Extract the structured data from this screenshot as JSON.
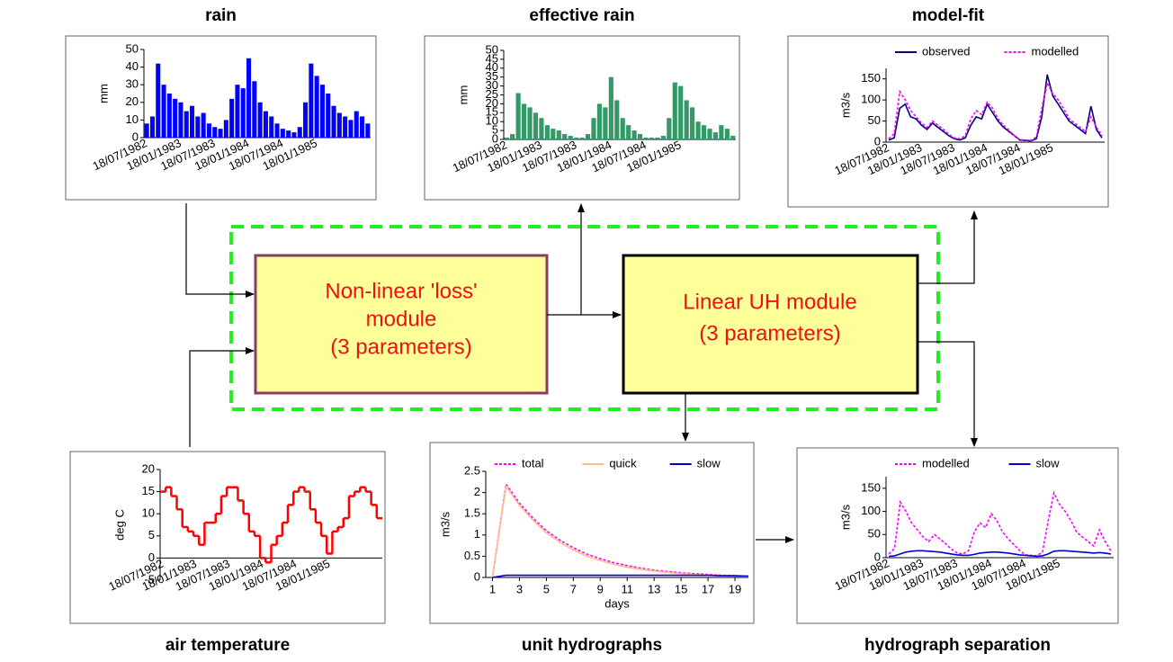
{
  "chart_data": [
    {
      "type": "bar",
      "title": "rain",
      "ylabel": "mm",
      "color": "#0000ff",
      "categories": [
        "18/07/1982",
        null,
        null,
        null,
        null,
        null,
        "18/01/1983",
        null,
        null,
        null,
        null,
        null,
        "18/07/1983",
        null,
        null,
        null,
        null,
        null,
        "18/01/1984",
        null,
        null,
        null,
        null,
        null,
        "18/07/1984",
        null,
        null,
        null,
        null,
        null,
        "18/01/1985",
        null,
        null,
        null,
        null,
        null,
        null,
        null,
        null,
        null
      ],
      "values": [
        8,
        12,
        42,
        30,
        25,
        22,
        20,
        15,
        18,
        12,
        14,
        8,
        6,
        5,
        10,
        22,
        30,
        28,
        45,
        32,
        20,
        15,
        12,
        8,
        5,
        4,
        3,
        6,
        20,
        42,
        35,
        30,
        25,
        18,
        14,
        12,
        10,
        15,
        12,
        8
      ],
      "ylim": [
        0,
        50
      ],
      "yticks": [
        0,
        10,
        20,
        30,
        40,
        50
      ]
    },
    {
      "type": "bar",
      "title": "effective rain",
      "ylabel": "mm",
      "color": "#339966",
      "categories": [
        "18/07/1982",
        null,
        null,
        null,
        null,
        null,
        "18/01/1983",
        null,
        null,
        null,
        null,
        null,
        "18/07/1983",
        null,
        null,
        null,
        null,
        null,
        "18/01/1984",
        null,
        null,
        null,
        null,
        null,
        "18/07/1984",
        null,
        null,
        null,
        null,
        null,
        "18/01/1985",
        null,
        null,
        null,
        null,
        null,
        null,
        null,
        null,
        null
      ],
      "values": [
        1,
        3,
        26,
        20,
        18,
        15,
        12,
        8,
        6,
        5,
        3,
        2,
        1,
        1,
        3,
        12,
        20,
        18,
        35,
        22,
        12,
        8,
        5,
        3,
        1,
        1,
        1,
        2,
        12,
        32,
        30,
        22,
        18,
        10,
        8,
        6,
        4,
        8,
        6,
        2
      ],
      "ylim": [
        0,
        50
      ],
      "yticks": [
        0,
        5,
        10,
        15,
        20,
        25,
        30,
        35,
        40,
        45,
        50
      ]
    },
    {
      "type": "line",
      "title": "model-fit",
      "ylabel": "m3/s",
      "legend": "top",
      "categories": [
        "18/07/1982",
        null,
        null,
        null,
        null,
        null,
        "18/01/1983",
        null,
        null,
        null,
        null,
        null,
        "18/07/1983",
        null,
        null,
        null,
        null,
        null,
        "18/01/1984",
        null,
        null,
        null,
        null,
        null,
        "18/07/1984",
        null,
        null,
        null,
        null,
        null,
        "18/01/1985",
        null,
        null,
        null,
        null,
        null,
        null,
        null,
        null,
        null
      ],
      "series": [
        {
          "name": "observed",
          "color": "#000080",
          "dash": false,
          "values": [
            5,
            10,
            80,
            90,
            60,
            55,
            40,
            30,
            45,
            35,
            25,
            15,
            8,
            5,
            10,
            40,
            60,
            55,
            90,
            70,
            50,
            35,
            25,
            15,
            5,
            4,
            3,
            8,
            60,
            160,
            110,
            90,
            70,
            50,
            40,
            30,
            20,
            85,
            30,
            10
          ]
        },
        {
          "name": "modelled",
          "color": "#ff00ff",
          "dash": true,
          "values": [
            8,
            20,
            120,
            100,
            75,
            60,
            45,
            35,
            50,
            40,
            30,
            18,
            10,
            8,
            15,
            55,
            75,
            65,
            95,
            80,
            55,
            40,
            28,
            15,
            6,
            5,
            4,
            12,
            80,
            140,
            115,
            100,
            80,
            55,
            45,
            35,
            25,
            60,
            35,
            15
          ]
        }
      ],
      "ylim": [
        0,
        175
      ],
      "yticks": [
        0,
        50,
        100,
        150
      ]
    },
    {
      "type": "line",
      "step": true,
      "title": "air temperature",
      "ylabel": "deg C",
      "color": "#ff0000",
      "categories": [
        "18/07/1982",
        null,
        null,
        null,
        null,
        null,
        "18/01/1983",
        null,
        null,
        null,
        null,
        null,
        "18/07/1983",
        null,
        null,
        null,
        null,
        null,
        "18/01/1984",
        null,
        null,
        null,
        null,
        null,
        "18/07/1984",
        null,
        null,
        null,
        null,
        null,
        "18/01/1985",
        null,
        null,
        null,
        null,
        null,
        null,
        null,
        null,
        null
      ],
      "values": [
        15,
        16,
        14,
        11,
        7,
        6,
        5,
        3,
        8,
        8,
        10,
        14,
        16,
        16,
        13,
        10,
        6,
        5,
        0,
        -1,
        3,
        5,
        8,
        12,
        15,
        16,
        15,
        11,
        8,
        5,
        1,
        6,
        7,
        9,
        14,
        15,
        16,
        15,
        12,
        9
      ],
      "ylim": [
        -5,
        20
      ],
      "yticks": [
        -5,
        0,
        5,
        10,
        15,
        20
      ]
    },
    {
      "type": "line",
      "title": "unit hydrographs",
      "ylabel": "m3/s",
      "xlabel": "days",
      "legend": "top",
      "x": [
        1,
        2,
        3,
        4,
        5,
        6,
        7,
        8,
        9,
        10,
        11,
        12,
        13,
        14,
        15,
        16,
        17,
        18,
        19,
        20
      ],
      "series": [
        {
          "name": "total",
          "color": "#ff00ff",
          "dash": true,
          "values": [
            0,
            2.2,
            1.75,
            1.4,
            1.1,
            0.88,
            0.7,
            0.55,
            0.44,
            0.35,
            0.28,
            0.22,
            0.17,
            0.14,
            0.11,
            0.09,
            0.07,
            0.05,
            0.04,
            0.03
          ]
        },
        {
          "name": "quick",
          "color": "#ffbb88",
          "dash": false,
          "values": [
            0,
            2.15,
            1.7,
            1.35,
            1.05,
            0.83,
            0.65,
            0.5,
            0.4,
            0.31,
            0.24,
            0.19,
            0.15,
            0.12,
            0.09,
            0.07,
            0.05,
            0.04,
            0.03,
            0.02
          ]
        },
        {
          "name": "slow",
          "color": "#0000cc",
          "dash": false,
          "values": [
            0,
            0.05,
            0.05,
            0.05,
            0.05,
            0.05,
            0.05,
            0.05,
            0.05,
            0.05,
            0.05,
            0.05,
            0.05,
            0.05,
            0.05,
            0.05,
            0.05,
            0.04,
            0.04,
            0.03
          ]
        }
      ],
      "xlim": [
        0.5,
        20
      ],
      "xticks": [
        1,
        3,
        5,
        7,
        9,
        11,
        13,
        15,
        17,
        19
      ],
      "ylim": [
        0,
        2.5
      ],
      "yticks": [
        0,
        0.5,
        1,
        1.5,
        2,
        2.5
      ]
    },
    {
      "type": "line",
      "title": "hydrograph separation",
      "ylabel": "m3/s",
      "legend": "top",
      "categories": [
        "18/07/1982",
        null,
        null,
        null,
        null,
        null,
        "18/01/1983",
        null,
        null,
        null,
        null,
        null,
        "18/07/1983",
        null,
        null,
        null,
        null,
        null,
        "18/01/1984",
        null,
        null,
        null,
        null,
        null,
        "18/07/1984",
        null,
        null,
        null,
        null,
        null,
        "18/01/1985",
        null,
        null,
        null,
        null,
        null,
        null,
        null,
        null,
        null
      ],
      "series": [
        {
          "name": "modelled",
          "color": "#ff00ff",
          "dash": true,
          "values": [
            8,
            20,
            120,
            100,
            75,
            60,
            45,
            35,
            50,
            40,
            30,
            18,
            10,
            8,
            15,
            55,
            75,
            65,
            95,
            80,
            55,
            40,
            28,
            15,
            6,
            5,
            4,
            12,
            80,
            140,
            115,
            100,
            80,
            55,
            45,
            35,
            25,
            60,
            35,
            15
          ]
        },
        {
          "name": "slow",
          "color": "#0000cc",
          "dash": false,
          "values": [
            3,
            4,
            8,
            12,
            14,
            15,
            15,
            14,
            13,
            12,
            10,
            8,
            6,
            5,
            5,
            7,
            10,
            11,
            12,
            12,
            11,
            10,
            8,
            6,
            5,
            4,
            3,
            4,
            8,
            14,
            15,
            15,
            14,
            13,
            12,
            11,
            10,
            11,
            10,
            8
          ]
        }
      ],
      "ylim": [
        0,
        175
      ],
      "yticks": [
        0,
        50,
        100,
        150
      ]
    }
  ],
  "diagram": {
    "modules": [
      {
        "lines": [
          "Non-linear 'loss'",
          "module",
          "(3 parameters)"
        ]
      },
      {
        "lines": [
          "Linear UH module",
          "(3 parameters)"
        ]
      }
    ]
  }
}
